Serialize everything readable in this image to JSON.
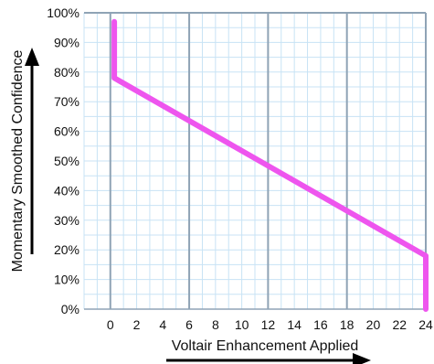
{
  "colors": {
    "series": "#ee55ee",
    "grid_minor": "#c8e3f5",
    "grid_major": "#8fa3b5",
    "frame": "#8fa3b5",
    "arrow": "#000000"
  },
  "chart_data": {
    "type": "line",
    "xlabel": "Voltair Enhancement Applied",
    "ylabel": "Momentary Smoothed Confidence",
    "xlim": [
      -2,
      24
    ],
    "ylim": [
      0,
      100
    ],
    "x_ticks": [
      0,
      2,
      4,
      6,
      8,
      10,
      12,
      14,
      16,
      18,
      20,
      22,
      24
    ],
    "x_tick_labels": [
      "0",
      "2",
      "4",
      "6",
      "8",
      "10",
      "12",
      "14",
      "16",
      "18",
      "20",
      "22",
      "24"
    ],
    "x_major_gridlines": [
      0,
      6,
      12,
      18,
      24
    ],
    "y_ticks": [
      0,
      10,
      20,
      30,
      40,
      50,
      60,
      70,
      80,
      90,
      100
    ],
    "y_tick_labels": [
      "0%",
      "10%",
      "20%",
      "30%",
      "40%",
      "50%",
      "60%",
      "70%",
      "80%",
      "90%",
      "100%"
    ],
    "grid": true,
    "series": [
      {
        "x": [
          0.3,
          0.3,
          24,
          24
        ],
        "y": [
          97,
          78,
          18,
          0
        ]
      }
    ]
  }
}
